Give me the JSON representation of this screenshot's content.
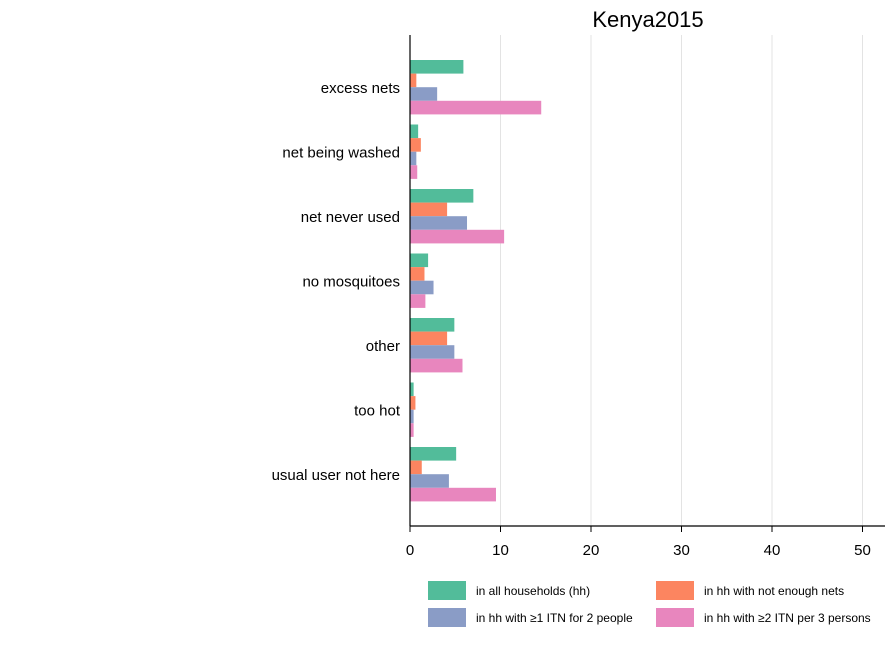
{
  "chart_data": {
    "type": "bar",
    "orientation": "horizontal",
    "title": "Kenya2015",
    "xlabel": "",
    "ylabel": "",
    "xlim": [
      0,
      52
    ],
    "xticks": [
      0,
      10,
      20,
      30,
      40,
      50
    ],
    "grid": "vertical",
    "legend_position": "bottom",
    "categories": [
      "excess nets",
      "net being washed",
      "net never used",
      "no mosquitoes",
      "other",
      "too hot",
      "usual user not here"
    ],
    "series": [
      {
        "name": "in all households (hh)",
        "color": "#52BC9A",
        "values": [
          5.9,
          0.9,
          7.0,
          2.0,
          4.9,
          0.4,
          5.1
        ]
      },
      {
        "name": "in hh with not enough nets",
        "color": "#FC8560",
        "values": [
          0.7,
          1.2,
          4.1,
          1.6,
          4.1,
          0.6,
          1.3
        ]
      },
      {
        "name": "in hh with ≥1 ITN for 2 people",
        "color": "#8A9CC6",
        "values": [
          3.0,
          0.7,
          6.3,
          2.6,
          4.9,
          0.4,
          4.3
        ]
      },
      {
        "name": "in hh with ≥2 ITN per 3 persons",
        "color": "#E886BE",
        "values": [
          14.5,
          0.8,
          10.4,
          1.7,
          5.8,
          0.4,
          9.5
        ]
      }
    ]
  }
}
